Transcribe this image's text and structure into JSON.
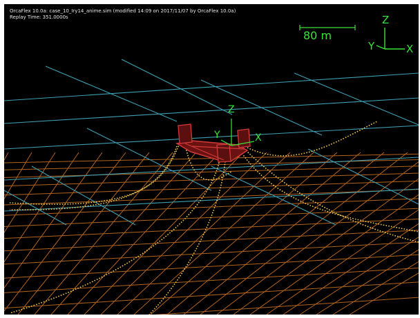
{
  "window": {
    "title_line": "OrcaFlex 10.0a: case_10_Iry14_anime.sim (modified 14:09 on 2017/11/07 by OrcaFlex 10.0a)",
    "replay_time": "Replay Time: 351.0000s"
  },
  "scale_bar": {
    "label": "80 m"
  },
  "view_axes": {
    "z": "Z",
    "y": "Y",
    "x": "X"
  },
  "vessel_axes": {
    "z": "Z",
    "y": "Y",
    "x": "X"
  },
  "colors": {
    "background": "#000000",
    "sea_surface_grid": "#3fa0b4",
    "seabed_grid": "#b4641e",
    "mooring_lines": "#f0c65a",
    "vessel": "#c83232",
    "axes_text": "#39e43a"
  }
}
